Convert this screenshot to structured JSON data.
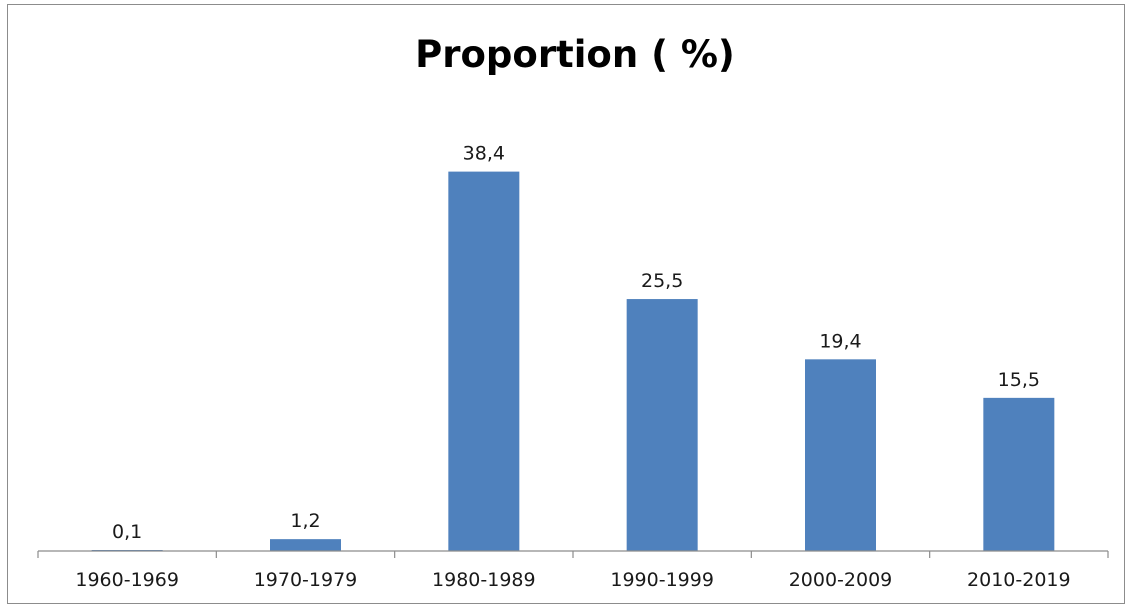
{
  "chart_data": {
    "type": "bar",
    "title": "Proportion ( %)",
    "categories": [
      "1960-1969",
      "1970-1979",
      "1980-1989",
      "1990-1999",
      "2000-2009",
      "2010-2019"
    ],
    "values": [
      0.1,
      1.2,
      38.4,
      25.5,
      19.4,
      15.5
    ],
    "data_labels": [
      "0,1",
      "1,2",
      "38,4",
      "25,5",
      "19,4",
      "15,5"
    ],
    "xlabel": "",
    "ylabel": "",
    "ylim": [
      0,
      45
    ],
    "grid": false,
    "legend": "none",
    "bar_color": "#4f81bd"
  }
}
